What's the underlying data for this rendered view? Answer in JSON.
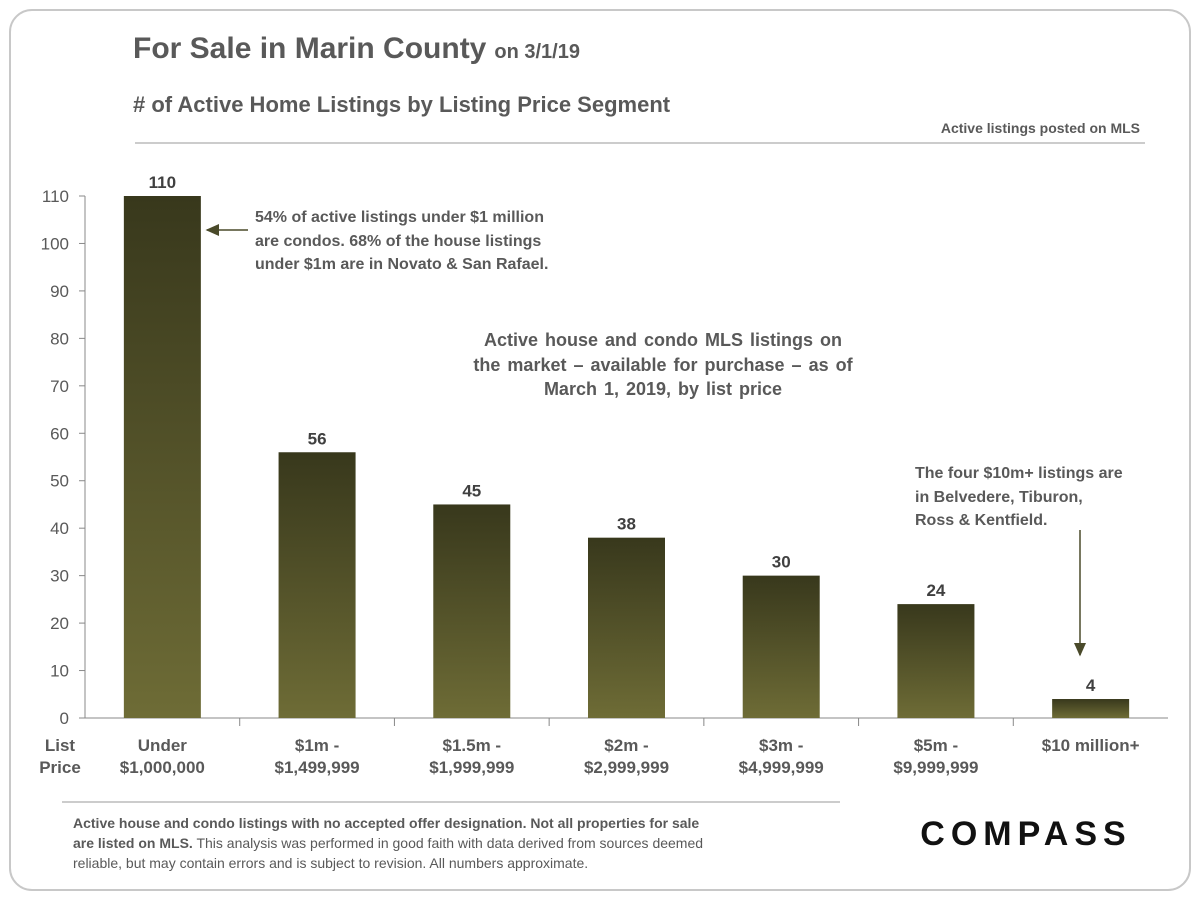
{
  "chart_data": {
    "type": "bar",
    "title": "For Sale in Marin County",
    "title_suffix": "on 3/1/19",
    "subtitle": "# of Active Home Listings by Listing Price Segment",
    "source_note": "Active listings posted on MLS",
    "x_label": "List\nPrice",
    "categories": [
      "Under\n$1,000,000",
      "$1m -\n$1,499,999",
      "$1.5m -\n$1,999,999",
      "$2m -\n$2,999,999",
      "$3m -\n$4,999,999",
      "$5m -\n$9,999,999",
      "$10 million+"
    ],
    "values": [
      110,
      56,
      45,
      38,
      30,
      24,
      4
    ],
    "color_top": "#38381c",
    "color_bottom": "#6e6c36",
    "ylim": [
      0,
      110
    ],
    "yticks": [
      0,
      10,
      20,
      30,
      40,
      50,
      60,
      70,
      80,
      90,
      100,
      110
    ],
    "annotations": [
      "54% of active listings under $1 million\nare condos. 68% of the house listings\nunder $1m are in Novato & San Rafael.",
      "Active house and condo MLS listings on\nthe market – available for purchase – as of\nMarch 1, 2019, by list price",
      "The four $10m+ listings are\nin Belvedere, Tiburon,\nRoss & Kentfield."
    ],
    "footnote_bold": "Active house and condo listings with no accepted offer designation. Not all properties for sale\nare listed on MLS.",
    "footnote": " This analysis was performed in good faith with data derived from sources deemed\nreliable, but may contain errors and is subject to revision.  All numbers approximate.",
    "brand": "COMPASS"
  }
}
